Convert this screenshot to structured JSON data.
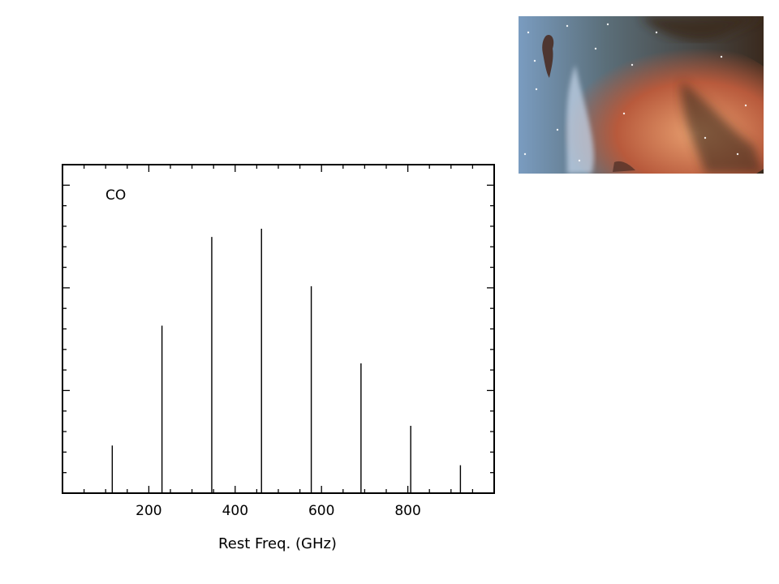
{
  "chart_data": {
    "type": "bar",
    "annotation": "CO",
    "xlabel": "Rest Freq. (GHz)",
    "ylabel": "",
    "xlim": [
      0,
      1000
    ],
    "ylim": [
      0,
      1
    ],
    "xticks": [
      200,
      400,
      600,
      800
    ],
    "x": [
      115.3,
      230.5,
      345.8,
      461.0,
      576.3,
      691.5,
      806.7,
      921.8
    ],
    "values": [
      0.145,
      0.51,
      0.78,
      0.805,
      0.63,
      0.395,
      0.205,
      0.085
    ]
  },
  "image": {
    "subject": "nebula-photo",
    "colors": {
      "blue_gas": "#7a9cc0",
      "red_gas": "#b85a3c",
      "dark_dust": "#3a2a1e",
      "glow": "#e8a070"
    }
  }
}
